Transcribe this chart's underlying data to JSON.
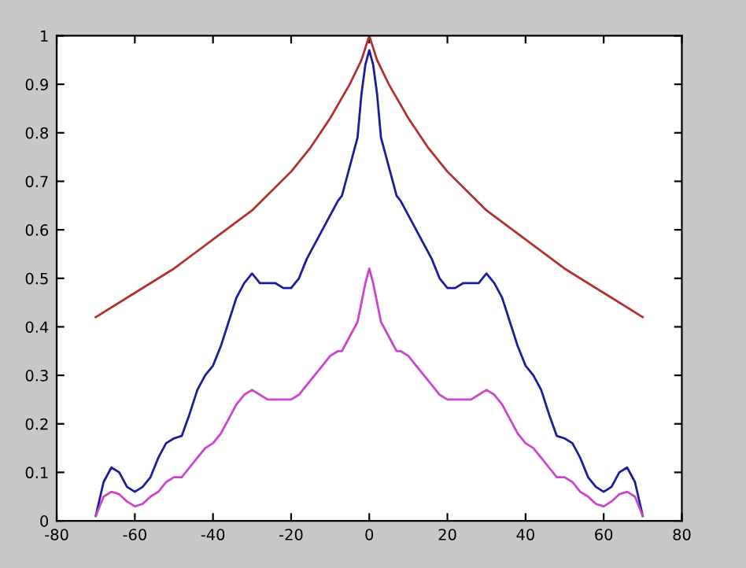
{
  "chart_data": {
    "type": "line",
    "xlim": [
      -80,
      80
    ],
    "ylim": [
      0,
      1
    ],
    "xticks": [
      -80,
      -60,
      -40,
      -20,
      0,
      20,
      40,
      60,
      80
    ],
    "yticks": [
      0,
      0.1,
      0.2,
      0.3,
      0.4,
      0.5,
      0.6,
      0.7,
      0.8,
      0.9,
      1
    ],
    "grid": false,
    "legend": false,
    "marker": "none",
    "line_style": "solid",
    "series": [
      {
        "color": "#b03030",
        "x": [
          -70,
          -60,
          -50,
          -40,
          -30,
          -20,
          -15,
          -10,
          -5,
          -2,
          0,
          2,
          5,
          10,
          15,
          20,
          30,
          40,
          50,
          60,
          70
        ],
        "values": [
          0.42,
          0.47,
          0.52,
          0.58,
          0.64,
          0.72,
          0.77,
          0.83,
          0.9,
          0.95,
          1.0,
          0.95,
          0.9,
          0.83,
          0.77,
          0.72,
          0.64,
          0.58,
          0.52,
          0.47,
          0.42
        ]
      },
      {
        "color": "#1c1c9c",
        "x": [
          -70,
          -68,
          -66,
          -64,
          -62,
          -60,
          -58,
          -56,
          -54,
          -52,
          -50,
          -48,
          -46,
          -44,
          -42,
          -40,
          -38,
          -36,
          -34,
          -32,
          -30,
          -28,
          -26,
          -24,
          -22,
          -20,
          -18,
          -16,
          -14,
          -12,
          -10,
          -8,
          -7,
          -5,
          -3,
          -2,
          -1,
          0,
          1,
          2,
          3,
          5,
          7,
          8,
          10,
          12,
          14,
          16,
          18,
          20,
          22,
          24,
          26,
          28,
          30,
          32,
          34,
          36,
          38,
          40,
          42,
          44,
          46,
          48,
          50,
          52,
          54,
          56,
          58,
          60,
          62,
          64,
          66,
          68,
          70
        ],
        "values": [
          0.01,
          0.08,
          0.11,
          0.1,
          0.07,
          0.06,
          0.07,
          0.09,
          0.13,
          0.16,
          0.17,
          0.175,
          0.22,
          0.27,
          0.3,
          0.32,
          0.36,
          0.41,
          0.46,
          0.49,
          0.51,
          0.49,
          0.49,
          0.49,
          0.48,
          0.48,
          0.5,
          0.54,
          0.57,
          0.6,
          0.63,
          0.66,
          0.67,
          0.73,
          0.79,
          0.88,
          0.94,
          0.97,
          0.94,
          0.88,
          0.79,
          0.73,
          0.67,
          0.66,
          0.63,
          0.6,
          0.57,
          0.54,
          0.5,
          0.48,
          0.48,
          0.49,
          0.49,
          0.49,
          0.51,
          0.49,
          0.46,
          0.41,
          0.36,
          0.32,
          0.3,
          0.27,
          0.22,
          0.175,
          0.17,
          0.16,
          0.13,
          0.09,
          0.07,
          0.06,
          0.07,
          0.1,
          0.11,
          0.08,
          0.01
        ]
      },
      {
        "color": "#cc44cc",
        "x": [
          -70,
          -68,
          -66,
          -64,
          -62,
          -60,
          -58,
          -56,
          -54,
          -52,
          -50,
          -48,
          -46,
          -44,
          -42,
          -40,
          -38,
          -36,
          -34,
          -32,
          -30,
          -28,
          -26,
          -24,
          -22,
          -20,
          -18,
          -16,
          -14,
          -12,
          -10,
          -8,
          -7,
          -5,
          -3,
          -2,
          -1,
          0,
          1,
          2,
          3,
          5,
          7,
          8,
          10,
          12,
          14,
          16,
          18,
          20,
          22,
          24,
          26,
          28,
          30,
          32,
          34,
          36,
          38,
          40,
          42,
          44,
          46,
          48,
          50,
          52,
          54,
          56,
          58,
          60,
          62,
          64,
          66,
          68,
          70
        ],
        "values": [
          0.01,
          0.05,
          0.06,
          0.055,
          0.04,
          0.03,
          0.035,
          0.05,
          0.06,
          0.08,
          0.09,
          0.09,
          0.11,
          0.13,
          0.15,
          0.16,
          0.18,
          0.21,
          0.24,
          0.26,
          0.27,
          0.26,
          0.25,
          0.25,
          0.25,
          0.25,
          0.26,
          0.28,
          0.3,
          0.32,
          0.34,
          0.35,
          0.35,
          0.38,
          0.41,
          0.45,
          0.49,
          0.52,
          0.49,
          0.45,
          0.41,
          0.38,
          0.35,
          0.35,
          0.34,
          0.32,
          0.3,
          0.28,
          0.26,
          0.25,
          0.25,
          0.25,
          0.25,
          0.26,
          0.27,
          0.26,
          0.24,
          0.21,
          0.18,
          0.16,
          0.15,
          0.13,
          0.11,
          0.09,
          0.09,
          0.08,
          0.06,
          0.05,
          0.035,
          0.03,
          0.04,
          0.055,
          0.06,
          0.05,
          0.01
        ]
      }
    ]
  }
}
